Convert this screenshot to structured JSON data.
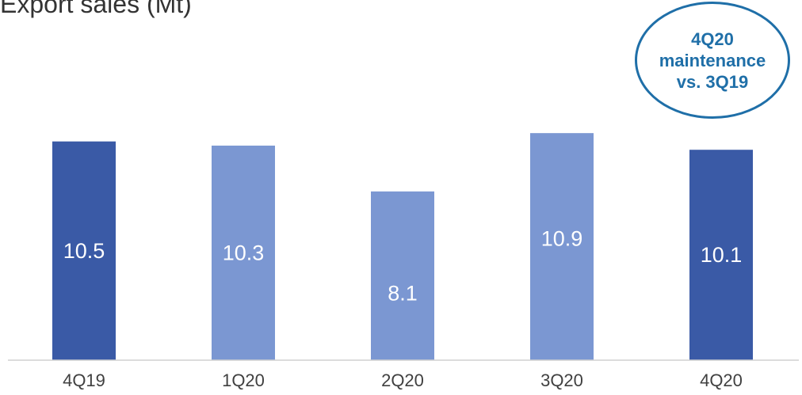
{
  "chart_data": {
    "type": "bar",
    "title": "Export sales (Mt)",
    "categories": [
      "4Q19",
      "1Q20",
      "2Q20",
      "3Q20",
      "4Q20"
    ],
    "values": [
      10.5,
      10.3,
      8.1,
      10.9,
      10.1
    ],
    "colors": [
      "#3a5aa6",
      "#7b97d2",
      "#7b97d2",
      "#7b97d2",
      "#3a5aa6"
    ],
    "xlabel": "",
    "ylabel": "",
    "ylim": [
      0,
      11.4
    ],
    "grid": false,
    "legend": "none",
    "annotation": {
      "text": "4Q20\nmaintenance\nvs. 3Q19",
      "color": "#1f6fa8"
    }
  }
}
